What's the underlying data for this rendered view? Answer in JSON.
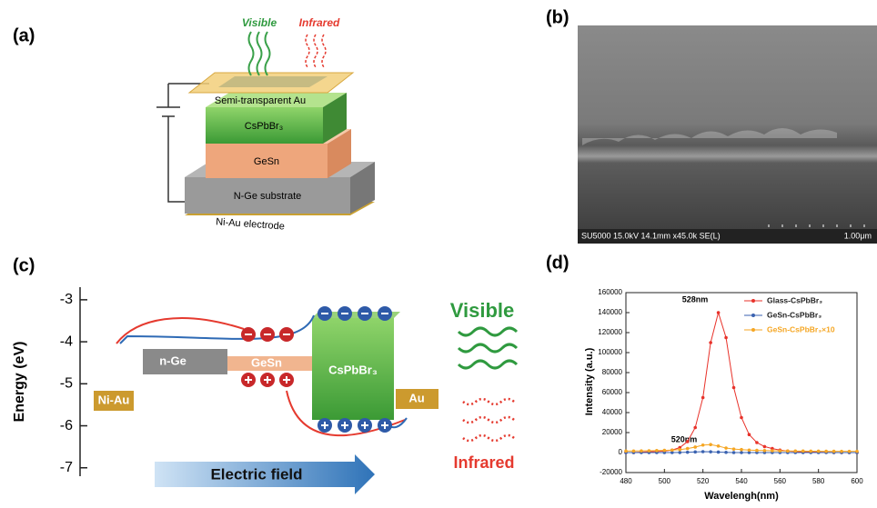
{
  "panel_a": {
    "label": "(a)",
    "visible": "Visible",
    "infrared": "Infrared",
    "layers": [
      "Semi-transparent Au",
      "CsPbBr₃",
      "GeSn",
      "N-Ge substrate"
    ],
    "electrode": "Ni-Au electrode"
  },
  "panel_b": {
    "label": "(b)",
    "info": "SU5000 15.0kV 14.1mm x45.0k SE(L)",
    "scale": "1.00μm"
  },
  "panel_c": {
    "label": "(c)",
    "y_label": "Energy (eV)",
    "ylim": [
      -7.2,
      -2.7
    ],
    "yticks": [
      -3,
      -4,
      -5,
      -6,
      -7
    ],
    "materials": [
      "n-Ge",
      "GeSn",
      "CsPbBr₃",
      "Ni-Au",
      "Au"
    ],
    "visible": "Visible",
    "infrared": "Infrared",
    "field": "Electric field"
  },
  "chart_data": {
    "type": "line",
    "label": "(d)",
    "x_label": "Wavelengh(nm)",
    "y_label": "Intensity (a.u.)",
    "annotations": [
      "528nm",
      "520nm"
    ],
    "x": [
      480,
      484,
      488,
      492,
      496,
      500,
      504,
      508,
      512,
      516,
      520,
      524,
      528,
      532,
      536,
      540,
      544,
      548,
      552,
      556,
      560,
      564,
      568,
      572,
      576,
      580,
      584,
      588,
      592,
      596,
      600
    ],
    "series": [
      {
        "name": "Glass-CsPbBr₃",
        "color": "#e8322a",
        "values": [
          0,
          0,
          500,
          800,
          1000,
          1500,
          2500,
          5000,
          11000,
          25000,
          55000,
          110000,
          140000,
          115000,
          65000,
          35000,
          18000,
          10000,
          6000,
          4000,
          2500,
          1500,
          1000,
          800,
          500,
          300,
          200,
          100,
          0,
          0,
          0
        ]
      },
      {
        "name": "GeSn-CsPbBr₃",
        "color": "#3a62b0",
        "values": [
          0,
          0,
          0,
          0,
          0,
          0,
          0,
          100,
          300,
          600,
          900,
          800,
          500,
          200,
          0,
          0,
          0,
          0,
          0,
          0,
          0,
          0,
          0,
          0,
          0,
          0,
          0,
          0,
          0,
          0,
          0
        ]
      },
      {
        "name": "GeSn-CsPbBr₃×10",
        "color": "#f5a623",
        "values": [
          1500,
          1600,
          1700,
          1800,
          2000,
          2200,
          2500,
          3000,
          4000,
          5500,
          7500,
          8000,
          6500,
          4500,
          3500,
          3000,
          2500,
          2200,
          2000,
          1800,
          1700,
          1600,
          1500,
          1500,
          1400,
          1400,
          1300,
          1300,
          1200,
          1200,
          1200
        ]
      }
    ],
    "xlim": [
      480,
      600
    ],
    "xticks": [
      480,
      500,
      520,
      540,
      560,
      580,
      600
    ],
    "ylim": [
      -20000,
      160000
    ],
    "yticks": [
      -20000,
      0,
      20000,
      40000,
      60000,
      80000,
      100000,
      120000,
      140000,
      160000
    ]
  }
}
